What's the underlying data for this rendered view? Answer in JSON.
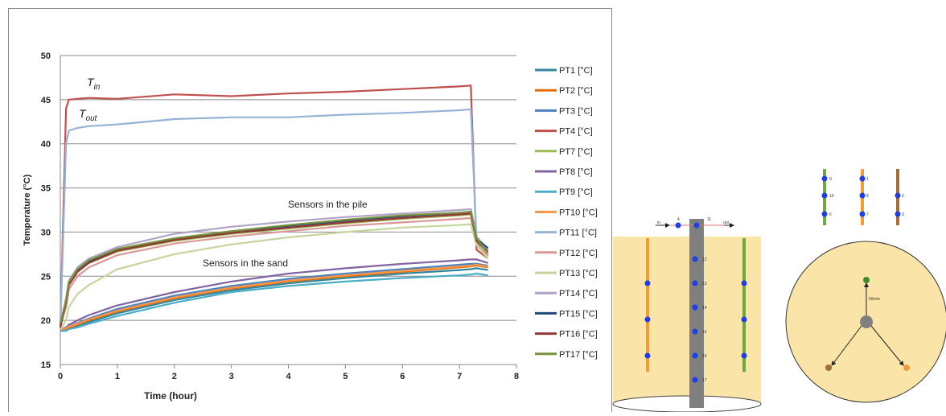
{
  "chart_data": {
    "type": "line",
    "x_label": "Time (hour)",
    "y_label": "Temperature (°C)",
    "xlim": [
      0,
      8
    ],
    "xticks": [
      0,
      1,
      2,
      3,
      4,
      5,
      6,
      7,
      8
    ],
    "ylim": [
      15,
      50
    ],
    "yticks": [
      15,
      20,
      25,
      30,
      35,
      40,
      45,
      50
    ],
    "grid": true,
    "legend": "right",
    "annotations": [
      {
        "text": "T",
        "subscript": "in"
      },
      {
        "text": "T",
        "subscript": "out"
      },
      {
        "text": "Sensors in the pile"
      },
      {
        "text": "Sensors in the sand"
      }
    ],
    "x": [
      0,
      0.1,
      0.15,
      0.3,
      0.5,
      1,
      2,
      3,
      4,
      5,
      6,
      7,
      7.2,
      7.3,
      7.5
    ],
    "series": [
      {
        "name": "PT1 [°C]",
        "color": "#31859c",
        "values": [
          19,
          19,
          19.1,
          19.4,
          19.8,
          20.8,
          22.3,
          23.4,
          24.2,
          24.8,
          25.3,
          25.7,
          25.8,
          25.9,
          25.7
        ]
      },
      {
        "name": "PT2 [°C]",
        "color": "#e46c0a",
        "values": [
          19,
          19,
          19.2,
          19.5,
          20,
          21,
          22.5,
          23.6,
          24.4,
          25,
          25.5,
          26,
          26.1,
          26.2,
          26
        ]
      },
      {
        "name": "PT3 [°C]",
        "color": "#4f81bd",
        "values": [
          19,
          19.1,
          19.3,
          19.7,
          20.2,
          21.3,
          22.8,
          23.9,
          24.7,
          25.3,
          25.8,
          26.3,
          26.4,
          26.4,
          26.2
        ]
      },
      {
        "name": "PT4 [°C]",
        "color": "#c0504d",
        "values": [
          19,
          44,
          45,
          45.1,
          45.2,
          45.1,
          45.6,
          45.4,
          45.7,
          45.9,
          46.2,
          46.5,
          46.6,
          28,
          27
        ]
      },
      {
        "name": "PT7 [°C]",
        "color": "#9bbb59",
        "values": [
          19.5,
          22,
          24,
          25.5,
          26.5,
          27.8,
          29,
          29.8,
          30.4,
          31,
          31.5,
          31.9,
          32,
          29,
          27.5
        ]
      },
      {
        "name": "PT8 [°C]",
        "color": "#8064a2",
        "values": [
          19,
          19.2,
          19.5,
          20,
          20.6,
          21.7,
          23.2,
          24.4,
          25.3,
          25.9,
          26.4,
          26.8,
          26.9,
          26.9,
          26.5
        ]
      },
      {
        "name": "PT9 [°C]",
        "color": "#4bacc6",
        "values": [
          18.8,
          18.8,
          19,
          19.2,
          19.6,
          20.5,
          22,
          23.2,
          23.9,
          24.4,
          24.8,
          25.1,
          25.2,
          25.3,
          25.1
        ]
      },
      {
        "name": "PT10 [°C]",
        "color": "#f79646",
        "values": [
          19,
          19.1,
          19.3,
          19.6,
          20.1,
          21.1,
          22.6,
          23.7,
          24.5,
          25.1,
          25.6,
          26.1,
          26.2,
          26.3,
          26.1
        ]
      },
      {
        "name": "PT11 [°C]",
        "color": "#95b3d7",
        "values": [
          19,
          40,
          41.5,
          41.8,
          42,
          42.2,
          42.8,
          43,
          43,
          43.3,
          43.5,
          43.8,
          43.9,
          29,
          27.5
        ]
      },
      {
        "name": "PT12 [°C]",
        "color": "#d99795",
        "values": [
          19.5,
          21.5,
          23.5,
          25,
          26,
          27.4,
          28.7,
          29.5,
          30.1,
          30.7,
          31.1,
          31.5,
          31.6,
          28.8,
          27.3
        ]
      },
      {
        "name": "PT13 [°C]",
        "color": "#c3d69b",
        "values": [
          19,
          20,
          21.5,
          23,
          24,
          25.8,
          27.5,
          28.6,
          29.4,
          30,
          30.5,
          30.8,
          30.9,
          28.5,
          27
        ]
      },
      {
        "name": "PT14 [°C]",
        "color": "#b3a2c7",
        "values": [
          19.5,
          22.5,
          24.5,
          26,
          27,
          28.3,
          29.8,
          30.6,
          31.2,
          31.7,
          32.1,
          32.5,
          32.6,
          29.5,
          28
        ]
      },
      {
        "name": "PT15 [°C]",
        "color": "#1f497d",
        "values": [
          19.5,
          22.2,
          24.2,
          25.7,
          26.7,
          28,
          29.2,
          30.1,
          30.7,
          31.3,
          31.8,
          32.2,
          32.3,
          29.2,
          28.2
        ]
      },
      {
        "name": "PT16 [°C]",
        "color": "#943634",
        "values": [
          19.2,
          22,
          24,
          25.5,
          26.5,
          27.9,
          29.1,
          29.9,
          30.5,
          31.1,
          31.6,
          32,
          32.1,
          29,
          27.8
        ]
      },
      {
        "name": "PT17 [°C]",
        "color": "#76923c",
        "values": [
          19.6,
          22.3,
          24.3,
          25.8,
          26.8,
          28.1,
          29.3,
          30.1,
          30.8,
          31.4,
          31.9,
          32.2,
          32.3,
          29.3,
          27.6
        ]
      }
    ]
  },
  "diagram": {
    "section_labels": [
      "in",
      "4",
      "11",
      "out",
      "12",
      "13",
      "14",
      "15",
      "16",
      "17"
    ],
    "rod_labels": [
      "9",
      "10",
      "6",
      "1",
      "8",
      "7",
      "2",
      "3"
    ],
    "plan_label": "50mm"
  }
}
